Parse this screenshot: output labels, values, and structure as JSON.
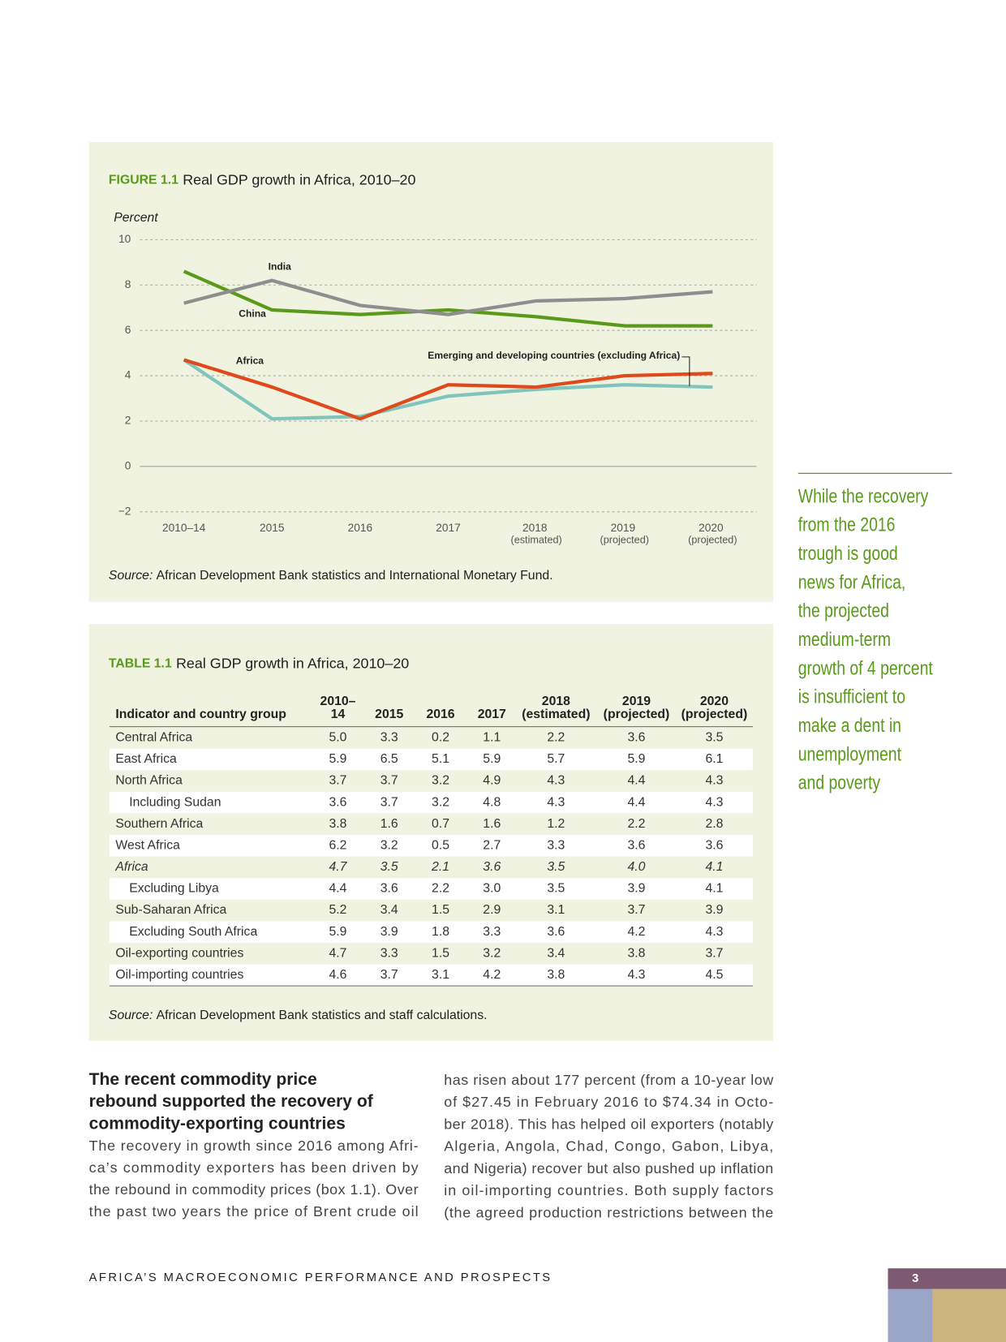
{
  "chart_data": {
    "type": "line",
    "figure_label": "FIGURE 1.1",
    "title": "Real GDP growth in Africa, 2010–20",
    "y_label": "Percent",
    "categories": [
      "2010–14",
      "2015",
      "2016",
      "2017",
      "2018 (estimated)",
      "2019 (projected)",
      "2020 (projected)"
    ],
    "series": [
      {
        "name": "India",
        "color": "#8e8e8e",
        "values": [
          7.2,
          8.2,
          7.1,
          6.7,
          7.3,
          7.4,
          7.7
        ]
      },
      {
        "name": "China",
        "color": "#5a9a1a",
        "values": [
          8.6,
          6.9,
          6.7,
          6.9,
          6.6,
          6.2,
          6.2
        ]
      },
      {
        "name": "Africa",
        "color": "#e0491c",
        "values": [
          4.7,
          3.5,
          2.1,
          3.6,
          3.5,
          4.0,
          4.1
        ]
      },
      {
        "name": "Emerging and developing countries (excluding Africa)",
        "color": "#7fc4bd",
        "values": [
          4.7,
          2.1,
          2.2,
          3.1,
          3.4,
          3.6,
          3.5
        ]
      }
    ],
    "ylim": [
      -2,
      10
    ],
    "yticks": [
      {
        "value": -2,
        "label": "−2"
      },
      0,
      2,
      4,
      6,
      8,
      10
    ],
    "grid": true,
    "source": {
      "prefix": "Source:",
      "text": "African Development Bank statistics and International Monetary Fund."
    }
  },
  "table": {
    "label": "TABLE 1.1",
    "title": "Real GDP growth in Africa, 2010–20",
    "header": [
      [
        "Indicator and country group"
      ],
      [
        "2010–",
        "14"
      ],
      [
        "2015"
      ],
      [
        "2016"
      ],
      [
        "2017"
      ],
      [
        "2018",
        "(estimated)"
      ],
      [
        "2019",
        "(projected)"
      ],
      [
        "2020",
        "(projected)"
      ]
    ],
    "rows": [
      [
        "Central Africa",
        "5.0",
        "3.3",
        "0.2",
        "1.1",
        "2.2",
        "3.6",
        "3.5"
      ],
      [
        "East Africa",
        "5.9",
        "6.5",
        "5.1",
        "5.9",
        "5.7",
        "5.9",
        "6.1"
      ],
      [
        "North Africa",
        "3.7",
        "3.7",
        "3.2",
        "4.9",
        "4.3",
        "4.4",
        "4.3"
      ],
      [
        "Including Sudan",
        "3.6",
        "3.7",
        "3.2",
        "4.8",
        "4.3",
        "4.4",
        "4.3"
      ],
      [
        "Southern Africa",
        "3.8",
        "1.6",
        "0.7",
        "1.6",
        "1.2",
        "2.2",
        "2.8"
      ],
      [
        "West Africa",
        "6.2",
        "3.2",
        "0.5",
        "2.7",
        "3.3",
        "3.6",
        "3.6"
      ],
      [
        "Africa",
        "4.7",
        "3.5",
        "2.1",
        "3.6",
        "3.5",
        "4.0",
        "4.1"
      ],
      [
        "Excluding Libya",
        "4.4",
        "3.6",
        "2.2",
        "3.0",
        "3.5",
        "3.9",
        "4.1"
      ],
      [
        "Sub-Saharan Africa",
        "5.2",
        "3.4",
        "1.5",
        "2.9",
        "3.1",
        "3.7",
        "3.9"
      ],
      [
        "Excluding South Africa",
        "5.9",
        "3.9",
        "1.8",
        "3.3",
        "3.6",
        "4.2",
        "4.3"
      ],
      [
        "Oil-exporting countries",
        "4.7",
        "3.3",
        "1.5",
        "3.2",
        "3.4",
        "3.8",
        "3.7"
      ],
      [
        "Oil-importing countries",
        "4.6",
        "3.7",
        "3.1",
        "4.2",
        "3.8",
        "4.3",
        "4.5"
      ]
    ],
    "source": {
      "prefix": "Source:",
      "text": "African Development Bank statistics and staff calculations."
    }
  },
  "pull_quote": [
    "While the recovery",
    "from the 2016",
    "trough is good",
    "news for Africa,",
    "the projected",
    "medium-term",
    "growth of 4 percent",
    "is insufficient to",
    "make a dent in",
    "unemployment",
    "and poverty"
  ],
  "article": {
    "heading": [
      "The recent commodity price",
      "rebound supported the recovery of",
      "commodity-exporting countries"
    ],
    "left": [
      "The recovery in growth since 2016 among Afri-",
      "ca’s commodity exporters has been driven by",
      "the rebound in commodity prices (box 1.1). Over",
      "the past two years the price of Brent crude oil"
    ],
    "right": [
      "has risen about 177 percent (from a 10-year low",
      "of $27.45 in February 2016 to $74.34 in Octo-",
      "ber 2018). This has helped oil exporters (notably",
      "Algeria, Angola, Chad, Congo, Gabon, Libya,",
      "and Nigeria) recover but also pushed up inflation",
      "in oil-importing countries. Both supply factors",
      "(the agreed production restrictions between the"
    ]
  },
  "footer": {
    "running_title": "AFRICA’S MACROECONOMIC PERFORMANCE AND PROSPECTS",
    "page": "3"
  }
}
